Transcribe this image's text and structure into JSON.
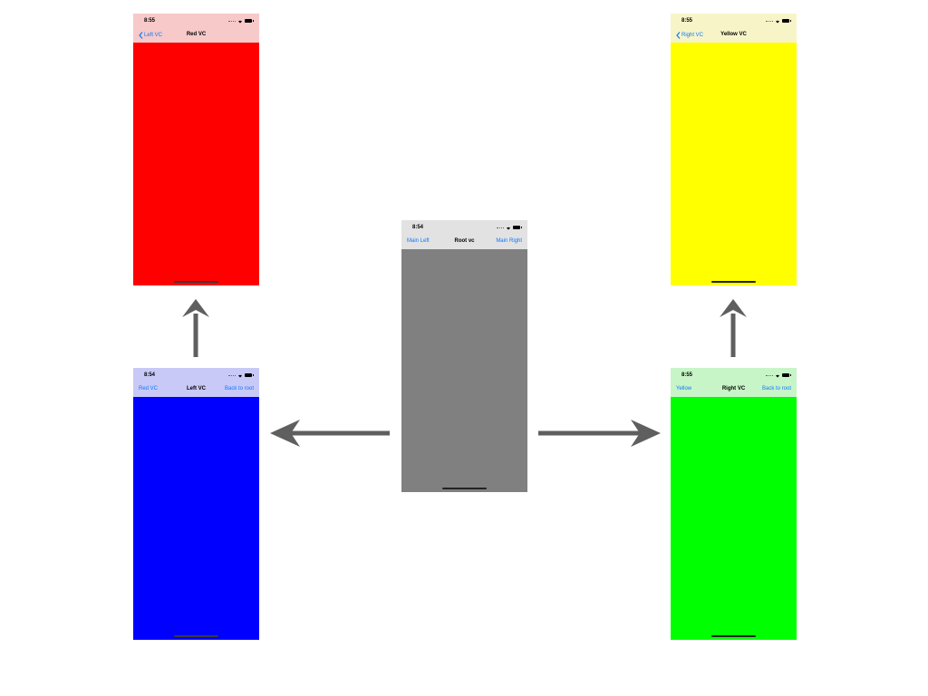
{
  "colors": {
    "link": "#0a7aff",
    "arrow": "#5f5f5f",
    "root_bar": "#e2e2e2",
    "root_fill": "#808080",
    "left_bar": "#c9c9f7",
    "left_fill": "#0000ff",
    "red_bar": "#f7c9c9",
    "red_fill": "#ff0000",
    "right_bar": "#c8f5c8",
    "right_fill": "#00ff00",
    "yellow_bar": "#f7f5c8",
    "yellow_fill": "#ffff00"
  },
  "screens": {
    "root": {
      "time": "8:54",
      "title": "Root vc",
      "left_button": "Main Left",
      "right_button": "Main Right"
    },
    "left": {
      "time": "8:54",
      "title": "Left VC",
      "left_button": "Red VC",
      "right_button": "Back to root"
    },
    "red": {
      "time": "8:55",
      "title": "Red VC",
      "back_button": "Left VC"
    },
    "right": {
      "time": "8:55",
      "title": "Right VC",
      "left_button": "Yellow",
      "right_button": "Back to root"
    },
    "yellow": {
      "time": "8:55",
      "title": "Yellow VC",
      "back_button": "Right VC"
    }
  },
  "icons": [
    "wifi-icon",
    "battery-icon",
    "signal-icon",
    "chevron-left-icon",
    "arrow-left-icon",
    "arrow-right-icon",
    "arrow-up-icon"
  ]
}
